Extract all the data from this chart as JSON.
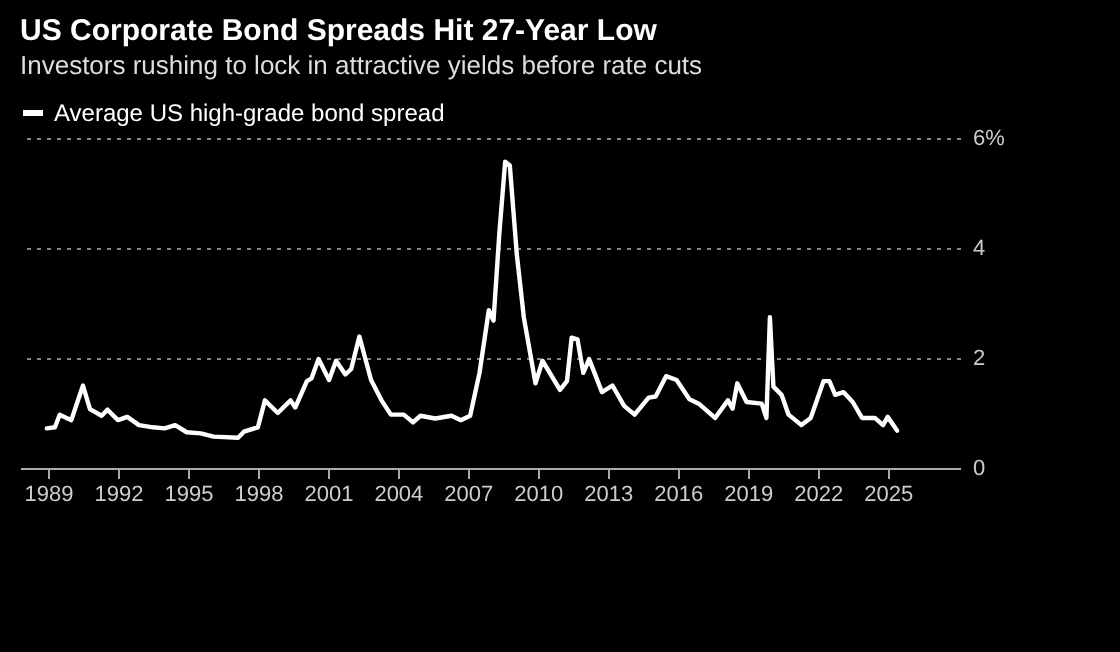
{
  "chart_data": {
    "type": "line",
    "title": "US Corporate Bond Spreads Hit 27-Year Low",
    "subtitle": "Investors rushing to lock in attractive yields before rate cuts",
    "x": [
      1988.95,
      1989.3,
      1989.5,
      1990.0,
      1990.5,
      1990.8,
      1991.3,
      1991.55,
      1992.0,
      1992.4,
      1992.9,
      1993.5,
      1994.0,
      1994.45,
      1994.95,
      1995.55,
      1996.1,
      1997.15,
      1997.4,
      1998.0,
      1998.3,
      1998.85,
      1999.4,
      1999.6,
      2000.1,
      2000.3,
      2000.6,
      2001.05,
      2001.35,
      2001.75,
      2002.0,
      2002.35,
      2002.85,
      2003.3,
      2003.7,
      2004.25,
      2004.65,
      2004.97,
      2005.6,
      2006.3,
      2006.7,
      2007.1,
      2007.5,
      2007.9,
      2008.1,
      2008.35,
      2008.6,
      2008.8,
      2009.1,
      2009.4,
      2009.9,
      2010.2,
      2010.95,
      2011.25,
      2011.45,
      2011.7,
      2011.95,
      2012.2,
      2012.75,
      2013.2,
      2013.7,
      2014.15,
      2014.75,
      2015.05,
      2015.5,
      2015.95,
      2016.5,
      2016.9,
      2017.6,
      2018.15,
      2018.35,
      2018.55,
      2018.95,
      2019.6,
      2019.8,
      2019.95,
      2020.1,
      2020.45,
      2020.75,
      2021.3,
      2021.7,
      2022.25,
      2022.5,
      2022.75,
      2023.1,
      2023.5,
      2023.9,
      2024.45,
      2024.8,
      2025.0,
      2025.4
    ],
    "series": [
      {
        "name": "Average US high-grade bond spread",
        "color": "#ffffff",
        "values": [
          0.72,
          0.74,
          0.97,
          0.87,
          1.5,
          1.07,
          0.95,
          1.06,
          0.87,
          0.93,
          0.78,
          0.74,
          0.72,
          0.78,
          0.65,
          0.63,
          0.57,
          0.55,
          0.66,
          0.74,
          1.23,
          1.0,
          1.23,
          1.1,
          1.58,
          1.63,
          1.98,
          1.6,
          1.95,
          1.7,
          1.8,
          2.39,
          1.6,
          1.23,
          0.97,
          0.97,
          0.83,
          0.95,
          0.9,
          0.95,
          0.87,
          0.95,
          1.73,
          2.87,
          2.68,
          4.26,
          5.57,
          5.5,
          3.88,
          2.74,
          1.54,
          1.95,
          1.42,
          1.58,
          2.37,
          2.34,
          1.73,
          1.98,
          1.38,
          1.5,
          1.13,
          0.97,
          1.28,
          1.3,
          1.67,
          1.6,
          1.25,
          1.17,
          0.91,
          1.23,
          1.08,
          1.54,
          1.2,
          1.17,
          0.91,
          2.74,
          1.48,
          1.33,
          0.97,
          0.78,
          0.91,
          1.58,
          1.58,
          1.33,
          1.38,
          1.2,
          0.91,
          0.91,
          0.78,
          0.93,
          0.68
        ]
      }
    ],
    "xlim": [
      1987.8,
      2028.1
    ],
    "xticks": [
      1989,
      1992,
      1995,
      1998,
      2001,
      2004,
      2007,
      2010,
      2013,
      2016,
      2019,
      2022,
      2025
    ],
    "ylim": [
      0,
      6
    ],
    "yticks": [
      0,
      2,
      4,
      {
        "value": 6,
        "label": "6%"
      }
    ],
    "grid": "y",
    "legend": "top left",
    "marker": "none",
    "line_style": "solid"
  }
}
